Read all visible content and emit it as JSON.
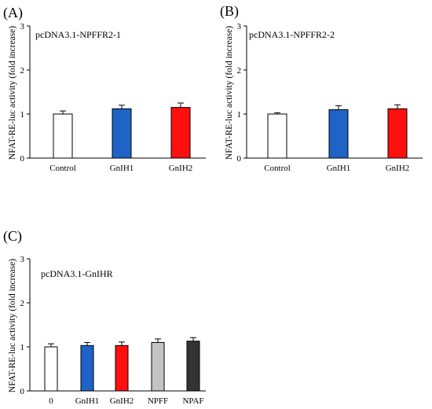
{
  "chart_data": [
    {
      "panel": "(A)",
      "type": "bar",
      "title": "pcDNA3.1-NPFFR2-1",
      "ylabel": "NFAT-RE-luc activity (fold increase)",
      "xlabel": "",
      "categories": [
        "Control",
        "GnIH1",
        "GnIH2"
      ],
      "values": [
        1.0,
        1.12,
        1.15
      ],
      "errors": [
        0.07,
        0.08,
        0.1
      ],
      "colors": [
        "#ffffff",
        "#1f63c6",
        "#ff1010"
      ],
      "ylim": [
        0,
        3
      ],
      "yticks": [
        "0",
        "1",
        "2",
        "3"
      ],
      "grid": false,
      "legend": "none"
    },
    {
      "panel": "(B)",
      "type": "bar",
      "title": "pcDNA3.1-NPFFR2-2",
      "ylabel": "NFAT-RE-luc activity (fold increase)",
      "xlabel": "",
      "categories": [
        "Control",
        "GnIH1",
        "GnIH2"
      ],
      "values": [
        1.0,
        1.1,
        1.12
      ],
      "errors": [
        0.03,
        0.09,
        0.09
      ],
      "colors": [
        "#ffffff",
        "#1f63c6",
        "#ff1010"
      ],
      "ylim": [
        0,
        3
      ],
      "yticks": [
        "0",
        "1",
        "2",
        "3"
      ],
      "grid": false,
      "legend": "none"
    },
    {
      "panel": "(C)",
      "type": "bar",
      "title": "pcDNA3.1-GnIHR",
      "ylabel": "NFAT-RE-luc activity (fold increase)",
      "xlabel": "",
      "categories": [
        "0",
        "GnIH1",
        "GnIH2",
        "NPFF",
        "NPAF"
      ],
      "values": [
        1.0,
        1.03,
        1.03,
        1.1,
        1.13
      ],
      "errors": [
        0.07,
        0.07,
        0.08,
        0.08,
        0.08
      ],
      "colors": [
        "#ffffff",
        "#1f63c6",
        "#ff1010",
        "#c4c4c4",
        "#333333"
      ],
      "ylim": [
        0,
        3
      ],
      "yticks": [
        "0",
        "1",
        "2",
        "3"
      ],
      "grid": false,
      "legend": "none"
    }
  ]
}
